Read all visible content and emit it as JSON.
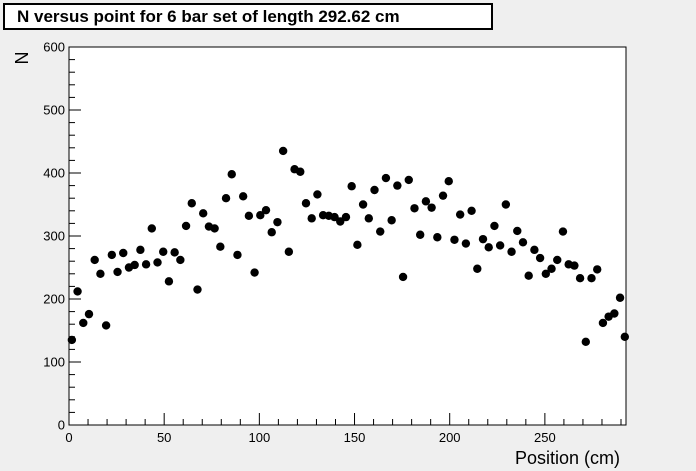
{
  "chart_data": {
    "type": "scatter",
    "title": "N versus point for 6 bar set of length 292.62 cm",
    "xlabel": "Position (cm)",
    "ylabel": "N",
    "xlim": [
      0,
      292.62
    ],
    "ylim": [
      0,
      600
    ],
    "x_ticks": [
      0,
      50,
      100,
      150,
      200,
      250
    ],
    "y_ticks": [
      0,
      100,
      200,
      300,
      400,
      500,
      600
    ],
    "grid": false,
    "legend": "none",
    "marker_color": "#000000",
    "background_color": "#ffffff",
    "canvas_color": "#efefef",
    "series": [
      {
        "x": [
          1.5,
          4.5,
          7.5,
          10.5,
          13.5,
          16.5,
          19.5,
          22.5,
          25.5,
          28.5,
          31.5,
          34.5,
          37.5,
          40.5,
          43.5,
          46.5,
          49.5,
          52.5,
          55.5,
          58.5,
          61.5,
          64.5,
          67.5,
          70.5,
          73.5,
          76.5,
          79.5,
          82.5,
          85.5,
          88.5,
          91.5,
          94.5,
          97.5,
          100.5,
          103.5,
          106.5,
          109.5,
          112.5,
          115.5,
          118.5,
          121.5,
          124.5,
          127.5,
          130.5,
          133.5,
          136.5,
          139.5,
          142.5,
          145.5,
          148.5,
          151.5,
          154.5,
          157.5,
          160.5,
          163.5,
          166.5,
          169.5,
          172.5,
          175.5,
          178.5,
          181.5,
          184.5,
          187.5,
          190.5,
          193.5,
          196.5,
          199.5,
          202.5,
          205.5,
          208.5,
          211.5,
          214.5,
          217.5,
          220.5,
          223.5,
          226.5,
          229.5,
          232.5,
          235.5,
          238.5,
          241.5,
          244.5,
          247.5,
          250.5,
          253.5,
          256.5,
          259.5,
          262.5,
          265.5,
          268.5,
          271.5,
          274.5,
          277.5,
          280.5,
          283.5,
          286.5,
          289.5,
          292.0
        ],
        "y": [
          135,
          212,
          162,
          176,
          262,
          240,
          158,
          270,
          243,
          273,
          250,
          254,
          278,
          255,
          312,
          258,
          275,
          228,
          274,
          262,
          316,
          352,
          215,
          336,
          315,
          312,
          283,
          360,
          398,
          270,
          363,
          332,
          242,
          333,
          341,
          306,
          322,
          435,
          275,
          406,
          402,
          352,
          328,
          366,
          333,
          332,
          330,
          323,
          330,
          379,
          286,
          350,
          328,
          373,
          307,
          392,
          325,
          380,
          235,
          389,
          344,
          302,
          355,
          345,
          298,
          364,
          387,
          294,
          334,
          288,
          340,
          248,
          295,
          282,
          316,
          285,
          350,
          275,
          308,
          290,
          237,
          278,
          265,
          240,
          248,
          262,
          307,
          255,
          253,
          233,
          132,
          233,
          247,
          162,
          172,
          177,
          202,
          140
        ]
      }
    ]
  }
}
